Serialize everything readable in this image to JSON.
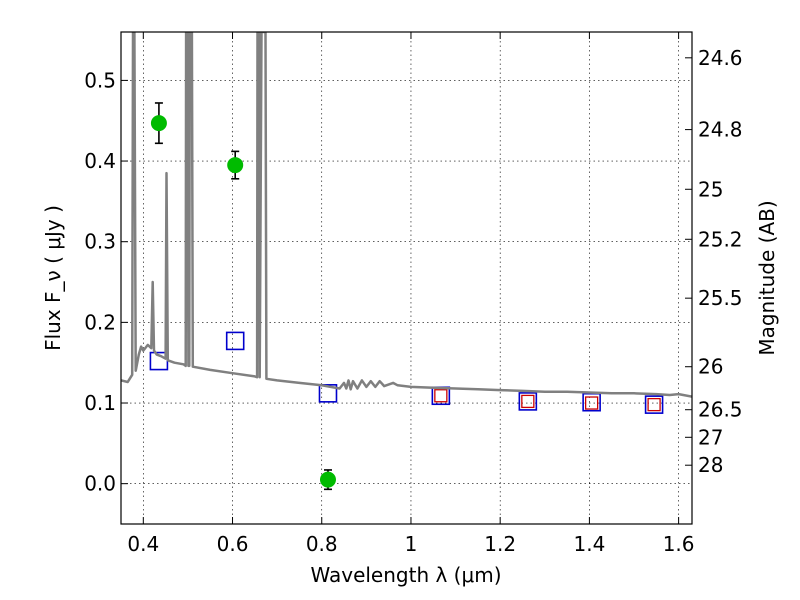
{
  "chart_data": {
    "type": "scatter",
    "xlabel": "Wavelength  λ (μm)",
    "ylabel": "Flux  F_ν  ( μJy )",
    "ylabel_right": "Magnitude (AB)",
    "xlim": [
      0.35,
      1.63
    ],
    "ylim": [
      -0.05,
      0.56
    ],
    "grid": true,
    "x_ticks": [
      0.4,
      0.6,
      0.8,
      1.0,
      1.2,
      1.4,
      1.6
    ],
    "x_tick_labels": [
      "0.4",
      "0.6",
      "0.8",
      "1",
      "1.2",
      "1.4",
      "1.6"
    ],
    "y_ticks": [
      0.0,
      0.1,
      0.2,
      0.3,
      0.4,
      0.5
    ],
    "y_tick_labels": [
      "0.0",
      "0.1",
      "0.2",
      "0.3",
      "0.4",
      "0.5"
    ],
    "right_ticks": [
      {
        "label": "24.6",
        "flux": 0.528
      },
      {
        "label": "24.8",
        "flux": 0.439
      },
      {
        "label": "25",
        "flux": 0.365
      },
      {
        "label": "25.2",
        "flux": 0.303
      },
      {
        "label": "25.5",
        "flux": 0.23
      },
      {
        "label": "26",
        "flux": 0.145
      },
      {
        "label": "26.5",
        "flux": 0.0917
      },
      {
        "label": "27",
        "flux": 0.0575
      },
      {
        "label": "28",
        "flux": 0.0229
      }
    ],
    "series": [
      {
        "style": "filled-circle",
        "color": "#00bb00",
        "points": [
          {
            "x": 0.435,
            "y": 0.447,
            "yerr": 0.025
          },
          {
            "x": 0.606,
            "y": 0.395,
            "yerr": 0.017
          },
          {
            "x": 0.814,
            "y": 0.005,
            "yerr": 0.012
          }
        ]
      },
      {
        "style": "open-square",
        "color": "#0000cc",
        "points": [
          {
            "x": 0.435,
            "y": 0.152
          },
          {
            "x": 0.606,
            "y": 0.177
          },
          {
            "x": 0.814,
            "y": 0.112
          },
          {
            "x": 1.067,
            "y": 0.109
          },
          {
            "x": 1.262,
            "y": 0.102
          },
          {
            "x": 1.405,
            "y": 0.101
          },
          {
            "x": 1.545,
            "y": 0.098
          }
        ]
      },
      {
        "style": "open-square-small",
        "color": "#cc0000",
        "points": [
          {
            "x": 1.067,
            "y": 0.109
          },
          {
            "x": 1.262,
            "y": 0.102
          },
          {
            "x": 1.405,
            "y": 0.1
          },
          {
            "x": 1.545,
            "y": 0.098
          }
        ]
      },
      {
        "style": "line",
        "color": "#808080",
        "points": [
          {
            "x": 0.35,
            "y": 0.128
          },
          {
            "x": 0.365,
            "y": 0.126
          },
          {
            "x": 0.375,
            "y": 0.135
          },
          {
            "x": 0.377,
            "y": 0.56
          },
          {
            "x": 0.38,
            "y": 0.56
          },
          {
            "x": 0.383,
            "y": 0.14
          },
          {
            "x": 0.39,
            "y": 0.16
          },
          {
            "x": 0.395,
            "y": 0.17
          },
          {
            "x": 0.4,
            "y": 0.165
          },
          {
            "x": 0.41,
            "y": 0.172
          },
          {
            "x": 0.418,
            "y": 0.168
          },
          {
            "x": 0.421,
            "y": 0.25
          },
          {
            "x": 0.424,
            "y": 0.165
          },
          {
            "x": 0.43,
            "y": 0.16
          },
          {
            "x": 0.44,
            "y": 0.158
          },
          {
            "x": 0.45,
            "y": 0.155
          },
          {
            "x": 0.452,
            "y": 0.385
          },
          {
            "x": 0.455,
            "y": 0.153
          },
          {
            "x": 0.47,
            "y": 0.15
          },
          {
            "x": 0.49,
            "y": 0.148
          },
          {
            "x": 0.495,
            "y": 0.146
          },
          {
            "x": 0.496,
            "y": 0.56
          },
          {
            "x": 0.499,
            "y": 0.56
          },
          {
            "x": 0.501,
            "y": 0.146
          },
          {
            "x": 0.503,
            "y": 0.146
          },
          {
            "x": 0.504,
            "y": 0.56
          },
          {
            "x": 0.509,
            "y": 0.56
          },
          {
            "x": 0.511,
            "y": 0.145
          },
          {
            "x": 0.55,
            "y": 0.141
          },
          {
            "x": 0.6,
            "y": 0.137
          },
          {
            "x": 0.65,
            "y": 0.133
          },
          {
            "x": 0.655,
            "y": 0.132
          },
          {
            "x": 0.656,
            "y": 0.56
          },
          {
            "x": 0.66,
            "y": 0.56
          },
          {
            "x": 0.661,
            "y": 0.132
          },
          {
            "x": 0.665,
            "y": 0.56
          },
          {
            "x": 0.674,
            "y": 0.56
          },
          {
            "x": 0.676,
            "y": 0.13
          },
          {
            "x": 0.7,
            "y": 0.128
          },
          {
            "x": 0.75,
            "y": 0.125
          },
          {
            "x": 0.8,
            "y": 0.122
          },
          {
            "x": 0.82,
            "y": 0.12
          },
          {
            "x": 0.84,
            "y": 0.118
          },
          {
            "x": 0.85,
            "y": 0.125
          },
          {
            "x": 0.855,
            "y": 0.118
          },
          {
            "x": 0.86,
            "y": 0.128
          },
          {
            "x": 0.865,
            "y": 0.117
          },
          {
            "x": 0.87,
            "y": 0.127
          },
          {
            "x": 0.88,
            "y": 0.118
          },
          {
            "x": 0.89,
            "y": 0.128
          },
          {
            "x": 0.9,
            "y": 0.12
          },
          {
            "x": 0.91,
            "y": 0.127
          },
          {
            "x": 0.92,
            "y": 0.12
          },
          {
            "x": 0.93,
            "y": 0.127
          },
          {
            "x": 0.94,
            "y": 0.121
          },
          {
            "x": 0.96,
            "y": 0.125
          },
          {
            "x": 0.97,
            "y": 0.122
          },
          {
            "x": 1.0,
            "y": 0.12
          },
          {
            "x": 1.05,
            "y": 0.119
          },
          {
            "x": 1.1,
            "y": 0.118
          },
          {
            "x": 1.15,
            "y": 0.117
          },
          {
            "x": 1.2,
            "y": 0.116
          },
          {
            "x": 1.25,
            "y": 0.115
          },
          {
            "x": 1.3,
            "y": 0.114
          },
          {
            "x": 1.35,
            "y": 0.114
          },
          {
            "x": 1.4,
            "y": 0.113
          },
          {
            "x": 1.45,
            "y": 0.112
          },
          {
            "x": 1.5,
            "y": 0.112
          },
          {
            "x": 1.55,
            "y": 0.111
          },
          {
            "x": 1.58,
            "y": 0.11
          },
          {
            "x": 1.6,
            "y": 0.111
          },
          {
            "x": 1.63,
            "y": 0.108
          }
        ]
      }
    ]
  }
}
